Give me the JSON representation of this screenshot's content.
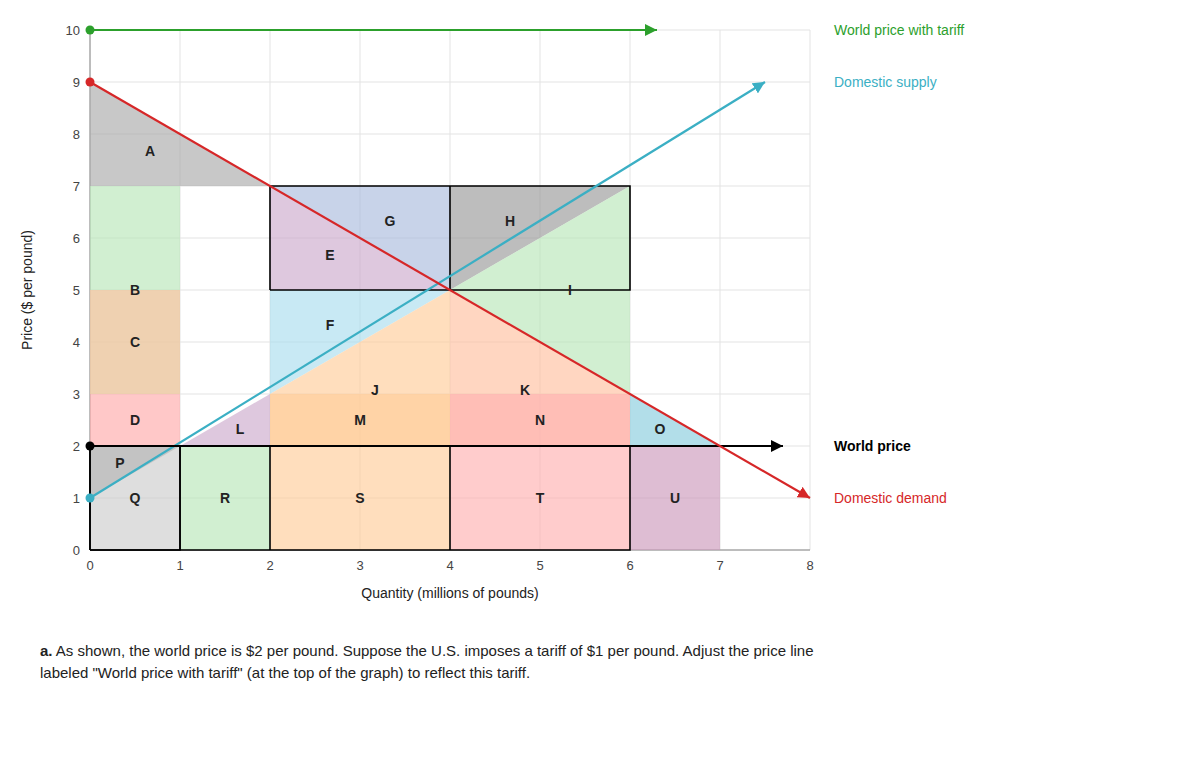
{
  "chart_data": {
    "type": "diagram",
    "xlabel": "Quantity (millions of pounds)",
    "ylabel": "Price ($ per pound)",
    "xlim": [
      0,
      8
    ],
    "ylim": [
      0,
      10
    ],
    "xticks": [
      0,
      1,
      2,
      3,
      4,
      5,
      6,
      7,
      8
    ],
    "yticks": [
      0,
      1,
      2,
      3,
      4,
      5,
      6,
      7,
      8,
      9,
      10
    ],
    "grid": true,
    "regions": [
      {
        "name": "A",
        "color": "#aaaaaa",
        "x": [
          0,
          0,
          2
        ],
        "y": [
          9,
          7,
          7
        ]
      },
      {
        "name": "B",
        "color": "#b8e6b8",
        "x": [
          0,
          1,
          1,
          0
        ],
        "y": [
          7,
          7,
          3,
          3
        ]
      },
      {
        "name": "C",
        "color": "#ffc0a0",
        "x": [
          0,
          1,
          1,
          0
        ],
        "y": [
          5,
          5,
          3,
          3
        ]
      },
      {
        "name": "D",
        "color": "#ffaaaa",
        "x": [
          0,
          1,
          1,
          0
        ],
        "y": [
          3,
          3,
          2,
          2
        ]
      },
      {
        "name": "P",
        "color": "#888888",
        "x": [
          0,
          0,
          1
        ],
        "y": [
          2,
          1,
          2
        ]
      },
      {
        "name": "Q",
        "color": "#cccccc",
        "x": [
          0,
          0,
          1,
          1
        ],
        "y": [
          0,
          2,
          2,
          0
        ]
      },
      {
        "name": "R",
        "color": "#b8e6b8",
        "x": [
          1,
          1,
          2,
          2
        ],
        "y": [
          0,
          2,
          2,
          0
        ]
      },
      {
        "name": "S",
        "color": "#ffcc99",
        "x": [
          2,
          2,
          4,
          4
        ],
        "y": [
          0,
          2,
          2,
          0
        ]
      },
      {
        "name": "T",
        "color": "#ffb0b0",
        "x": [
          4,
          4,
          6,
          6
        ],
        "y": [
          0,
          2,
          2,
          0
        ]
      },
      {
        "name": "U",
        "color": "#cc99bb",
        "x": [
          6,
          6,
          7,
          7
        ],
        "y": [
          0,
          2,
          2,
          0
        ]
      },
      {
        "name": "E",
        "color": "#ccaacc",
        "x": [
          2,
          2,
          4
        ],
        "y": [
          7,
          5,
          5
        ]
      },
      {
        "name": "F",
        "color": "#aaddee",
        "x": [
          2,
          2,
          4
        ],
        "y": [
          3,
          5,
          5
        ]
      },
      {
        "name": "G",
        "color": "#aabbdd",
        "x": [
          2,
          4,
          4
        ],
        "y": [
          7,
          7,
          5
        ]
      },
      {
        "name": "H",
        "color": "#999999",
        "x": [
          4,
          6,
          4
        ],
        "y": [
          7,
          7,
          5
        ]
      },
      {
        "name": "I",
        "color": "#b8e6b8",
        "x": [
          4,
          6,
          6
        ],
        "y": [
          5,
          7,
          3
        ]
      },
      {
        "name": "J",
        "color": "#ffcc99",
        "x": [
          2,
          2,
          4,
          4
        ],
        "y": [
          2,
          3,
          5,
          2
        ]
      },
      {
        "name": "K",
        "color": "#ffc0a0",
        "x": [
          4,
          4,
          6,
          6
        ],
        "y": [
          2,
          5,
          3,
          2
        ]
      },
      {
        "name": "L",
        "color": "#ccaacc",
        "x": [
          1,
          2,
          2
        ],
        "y": [
          2,
          3,
          2
        ]
      },
      {
        "name": "M",
        "color": "#ffcc99",
        "x": [
          2,
          2,
          4,
          4
        ],
        "y": [
          2,
          3,
          3,
          2
        ]
      },
      {
        "name": "N",
        "color": "#ffb0b0",
        "x": [
          4,
          4,
          6,
          6
        ],
        "y": [
          2,
          3,
          3,
          2
        ]
      },
      {
        "name": "O",
        "color": "#88ccdd",
        "x": [
          6,
          6,
          7
        ],
        "y": [
          2,
          3,
          2
        ]
      }
    ],
    "outlines": [
      {
        "x": [
          0,
          1,
          1,
          0,
          0
        ],
        "y": [
          0,
          0,
          2,
          2,
          0
        ]
      },
      {
        "x": [
          0,
          6,
          6,
          0,
          0
        ],
        "y": [
          0,
          0,
          2,
          2,
          0
        ]
      },
      {
        "x": [
          1,
          1
        ],
        "y": [
          0,
          2
        ]
      },
      {
        "x": [
          2,
          2
        ],
        "y": [
          0,
          2
        ]
      },
      {
        "x": [
          4,
          4
        ],
        "y": [
          0,
          2
        ]
      },
      {
        "x": [
          2,
          6,
          6,
          2,
          2
        ],
        "y": [
          5,
          5,
          7,
          7,
          5
        ]
      },
      {
        "x": [
          4,
          4
        ],
        "y": [
          5,
          7
        ]
      }
    ],
    "series": [
      {
        "name": "World price with tariff",
        "color": "#2ca02c",
        "marker": "circle",
        "x": [
          0,
          6.3
        ],
        "y": [
          10,
          10
        ]
      },
      {
        "name": "Domestic supply",
        "color": "#3bafc4",
        "marker": "circle",
        "x": [
          0,
          7.5
        ],
        "y": [
          1,
          9
        ]
      },
      {
        "name": "World price",
        "color": "#000000",
        "marker": "circle",
        "x": [
          0,
          7.7
        ],
        "y": [
          2,
          2
        ]
      },
      {
        "name": "Domestic demand",
        "color": "#d62728",
        "marker": "circle",
        "x": [
          0,
          8.0
        ],
        "y": [
          9,
          1
        ]
      }
    ],
    "annotation_bold": "a.",
    "annotation": " As shown, the world price is $2 per pound. Suppose the U.S. imposes a tariff of $1 per pound. Adjust the price line\nlabeled \"World price with tariff\" (at the top of the graph) to reflect this tariff."
  }
}
